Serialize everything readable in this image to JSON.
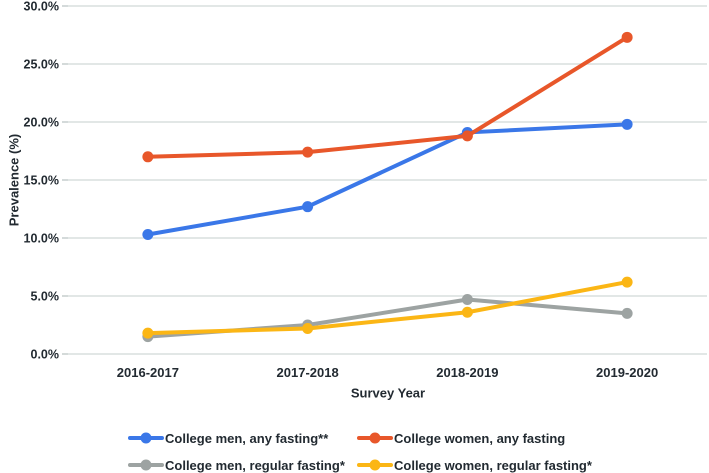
{
  "colors": {
    "background": "#ffffff",
    "gridline": "#d9dfde",
    "tick": "#c2cac9",
    "text": "#222a31",
    "series_blue": "#3a77e8",
    "series_orange": "#e8572a",
    "series_gray": "#9da3a2",
    "series_yellow": "#fbb615"
  },
  "chart_data": {
    "type": "line",
    "title": "",
    "xlabel": "Survey Year",
    "ylabel": "Prevalence (%)",
    "categories": [
      "2016-2017",
      "2017-2018",
      "2018-2019",
      "2019-2020"
    ],
    "series": [
      {
        "name": "College men, any fasting**",
        "color": "#3a77e8",
        "values": [
          10.3,
          12.7,
          19.1,
          19.8
        ]
      },
      {
        "name": "College women, any fasting",
        "color": "#e8572a",
        "values": [
          17.0,
          17.4,
          18.8,
          27.3
        ]
      },
      {
        "name": "College men, regular fasting*",
        "color": "#9da3a2",
        "values": [
          1.5,
          2.5,
          4.7,
          3.5
        ]
      },
      {
        "name": "College women, regular fasting*",
        "color": "#fbb615",
        "values": [
          1.8,
          2.2,
          3.6,
          6.2
        ]
      }
    ],
    "draw_order": [
      2,
      3,
      0,
      1
    ],
    "ylim": [
      0,
      30
    ],
    "ytick_step": 5,
    "ytick_labels": [
      "0.0%",
      "5.0%",
      "10.0%",
      "15.0%",
      "20.0%",
      "25.0%",
      "30.0%"
    ],
    "grid": true,
    "legend_position": "bottom"
  }
}
